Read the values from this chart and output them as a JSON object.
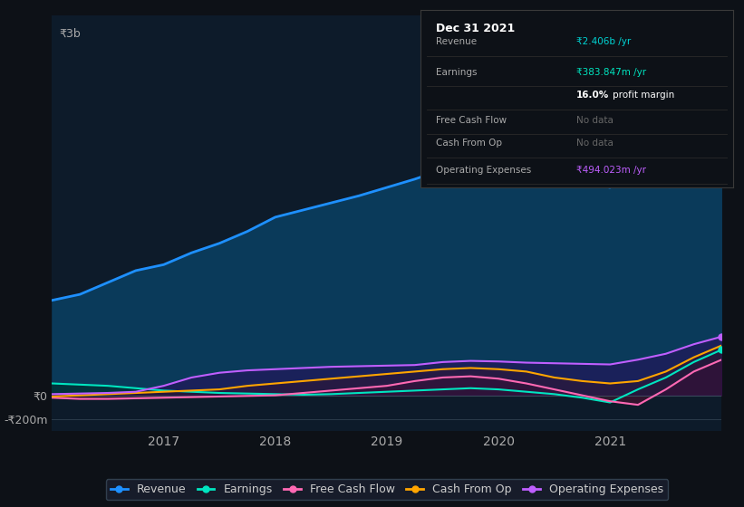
{
  "bg_color": "#0d1117",
  "plot_bg_color": "#0d1b2a",
  "grid_color": "#2a3a4a",
  "title_box": {
    "date": "Dec 31 2021",
    "rows": [
      {
        "label": "Revenue",
        "value": "₹2.406b /yr",
        "value_color": "#00d4d4"
      },
      {
        "label": "Earnings",
        "value": "₹383.847m /yr",
        "value_color": "#00e5c0"
      },
      {
        "label": "",
        "value": "16.0% profit margin",
        "value_color": "#ffffff",
        "bold_part": "16.0%"
      },
      {
        "label": "Free Cash Flow",
        "value": "No data",
        "value_color": "#555555"
      },
      {
        "label": "Cash From Op",
        "value": "No data",
        "value_color": "#555555"
      },
      {
        "label": "Operating Expenses",
        "value": "₹494.023m /yr",
        "value_color": "#bf5fff"
      }
    ]
  },
  "x_years": [
    2016.0,
    2016.25,
    2016.5,
    2016.75,
    2017.0,
    2017.25,
    2017.5,
    2017.75,
    2018.0,
    2018.25,
    2018.5,
    2018.75,
    2019.0,
    2019.25,
    2019.5,
    2019.75,
    2020.0,
    2020.25,
    2020.5,
    2020.75,
    2021.0,
    2021.25,
    2021.5,
    2021.75,
    2022.0
  ],
  "revenue": [
    800,
    850,
    950,
    1050,
    1100,
    1200,
    1280,
    1380,
    1500,
    1560,
    1620,
    1680,
    1750,
    1820,
    1900,
    1980,
    2050,
    1980,
    1900,
    1800,
    1750,
    1900,
    2200,
    2600,
    2406
  ],
  "earnings": [
    100,
    90,
    80,
    60,
    40,
    30,
    20,
    15,
    10,
    5,
    10,
    20,
    30,
    40,
    50,
    60,
    50,
    30,
    10,
    -20,
    -60,
    50,
    150,
    280,
    384
  ],
  "free_cash_flow": [
    -20,
    -30,
    -30,
    -25,
    -20,
    -15,
    -10,
    -5,
    0,
    20,
    40,
    60,
    80,
    120,
    150,
    160,
    140,
    100,
    50,
    0,
    -50,
    -80,
    50,
    200,
    300
  ],
  "cash_from_op": [
    -10,
    0,
    10,
    20,
    30,
    40,
    50,
    80,
    100,
    120,
    140,
    160,
    180,
    200,
    220,
    230,
    220,
    200,
    150,
    120,
    100,
    120,
    200,
    320,
    420
  ],
  "operating_expenses": [
    10,
    15,
    20,
    30,
    80,
    150,
    190,
    210,
    220,
    230,
    240,
    245,
    250,
    255,
    280,
    290,
    285,
    275,
    270,
    265,
    260,
    300,
    350,
    430,
    494
  ],
  "revenue_color": "#1e90ff",
  "revenue_fill": "#0a3a5a",
  "earnings_color": "#00e5c0",
  "earnings_fill": "#003030",
  "free_cash_flow_color": "#ff69b4",
  "free_cash_flow_fill": "#4a1030",
  "cash_from_op_color": "#ffa500",
  "cash_from_op_fill": "#3a2000",
  "op_expenses_color": "#bf5fff",
  "op_expenses_fill": "#2a0a5a",
  "ylim": [
    -300,
    3200
  ],
  "yticks": [
    -200,
    0,
    3000
  ],
  "ytick_labels": [
    "-₹200m",
    "₹0",
    "₹3b"
  ],
  "xticks": [
    2017,
    2018,
    2019,
    2020,
    2021
  ],
  "legend_items": [
    {
      "label": "Revenue",
      "color": "#1e90ff"
    },
    {
      "label": "Earnings",
      "color": "#00e5c0"
    },
    {
      "label": "Free Cash Flow",
      "color": "#ff69b4"
    },
    {
      "label": "Cash From Op",
      "color": "#ffa500"
    },
    {
      "label": "Operating Expenses",
      "color": "#bf5fff"
    }
  ]
}
